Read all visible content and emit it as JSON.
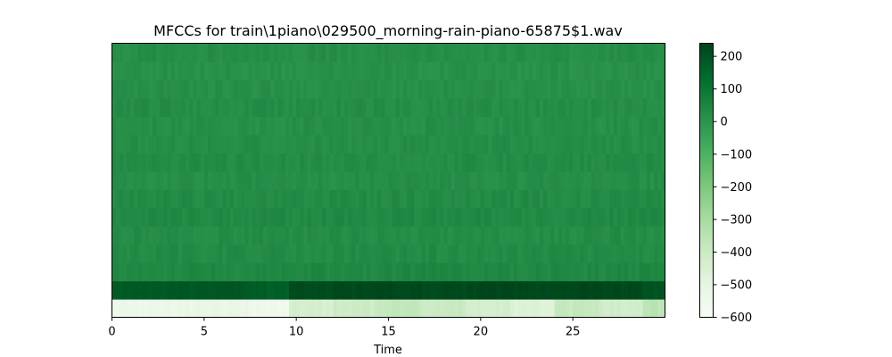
{
  "chart_data": {
    "type": "heatmap",
    "title": "MFCCs for train\\1piano\\029500_morning-rain-piano-65875$1.wav",
    "xlabel": "Time",
    "ylabel": "",
    "x_range": [
      0,
      30
    ],
    "x_ticks": [
      0,
      5,
      10,
      15,
      20,
      25
    ],
    "x_tick_labels": [
      "0",
      "5",
      "10",
      "15",
      "20",
      "25"
    ],
    "n_coefficients": 15,
    "grid": false,
    "colormap": "Greens",
    "color_low": "#f7fcf5",
    "color_high": "#00441b",
    "value_range": [
      -600,
      240
    ],
    "colorbar_ticks": [
      200,
      100,
      0,
      -100,
      -200,
      -300,
      -400,
      -500,
      -600
    ],
    "colorbar_tick_labels": [
      "200",
      "100",
      "0",
      "−100",
      "−200",
      "−300",
      "−400",
      "−500",
      "−600"
    ],
    "time_segments": [
      {
        "start": 0.0,
        "end": 3.6,
        "mfcc0": -540,
        "mfcc1": 185
      },
      {
        "start": 3.6,
        "end": 7.5,
        "mfcc0": -525,
        "mfcc1": 190
      },
      {
        "start": 7.5,
        "end": 9.6,
        "mfcc0": -560,
        "mfcc1": 170
      },
      {
        "start": 9.6,
        "end": 12.0,
        "mfcc0": -440,
        "mfcc1": 220
      },
      {
        "start": 12.0,
        "end": 14.4,
        "mfcc0": -410,
        "mfcc1": 228
      },
      {
        "start": 14.4,
        "end": 16.8,
        "mfcc0": -380,
        "mfcc1": 232
      },
      {
        "start": 16.8,
        "end": 19.2,
        "mfcc0": -400,
        "mfcc1": 225
      },
      {
        "start": 19.2,
        "end": 21.6,
        "mfcc0": -430,
        "mfcc1": 235
      },
      {
        "start": 21.6,
        "end": 24.0,
        "mfcc0": -470,
        "mfcc1": 230
      },
      {
        "start": 24.0,
        "end": 26.4,
        "mfcc0": -390,
        "mfcc1": 232
      },
      {
        "start": 26.4,
        "end": 28.8,
        "mfcc0": -420,
        "mfcc1": 228
      },
      {
        "start": 28.8,
        "end": 30.0,
        "mfcc0": -360,
        "mfcc1": 200
      }
    ],
    "higher_coefficient_means": [
      40,
      30,
      25,
      35,
      30,
      20,
      28,
      22,
      18,
      24,
      15,
      12,
      20
    ]
  }
}
